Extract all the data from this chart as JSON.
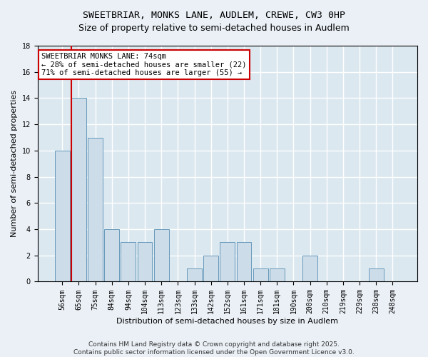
{
  "title": "SWEETBRIAR, MONKS LANE, AUDLEM, CREWE, CW3 0HP",
  "subtitle": "Size of property relative to semi-detached houses in Audlem",
  "xlabel": "Distribution of semi-detached houses by size in Audlem",
  "ylabel": "Number of semi-detached properties",
  "categories": [
    "56sqm",
    "65sqm",
    "75sqm",
    "84sqm",
    "94sqm",
    "104sqm",
    "113sqm",
    "123sqm",
    "133sqm",
    "142sqm",
    "152sqm",
    "161sqm",
    "171sqm",
    "181sqm",
    "190sqm",
    "200sqm",
    "210sqm",
    "219sqm",
    "229sqm",
    "238sqm",
    "248sqm"
  ],
  "values": [
    10,
    14,
    11,
    4,
    3,
    3,
    4,
    0,
    1,
    2,
    3,
    3,
    1,
    1,
    0,
    2,
    0,
    0,
    0,
    1,
    0
  ],
  "bar_color": "#ccdce8",
  "bar_edge_color": "#6699bb",
  "highlight_index": 1,
  "highlight_line_color": "#cc0000",
  "annotation_text": "SWEETBRIAR MONKS LANE: 74sqm\n← 28% of semi-detached houses are smaller (22)\n71% of semi-detached houses are larger (55) →",
  "annotation_box_color": "#ffffff",
  "annotation_box_edge_color": "#cc0000",
  "ylim": [
    0,
    18
  ],
  "yticks": [
    0,
    2,
    4,
    6,
    8,
    10,
    12,
    14,
    16,
    18
  ],
  "footnote": "Contains HM Land Registry data © Crown copyright and database right 2025.\nContains public sector information licensed under the Open Government Licence v3.0.",
  "background_color": "#eaf0f6",
  "plot_background_color": "#dce8f0",
  "grid_color": "#ffffff",
  "title_fontsize": 9.5,
  "xlabel_fontsize": 8,
  "ylabel_fontsize": 8,
  "tick_fontsize": 7,
  "footnote_fontsize": 6.5,
  "annotation_fontsize": 7.5
}
